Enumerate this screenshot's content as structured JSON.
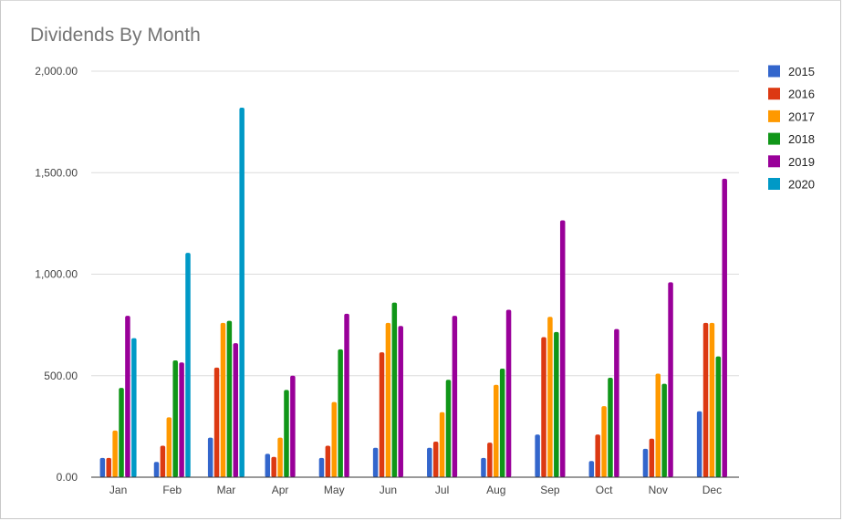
{
  "chart_data": {
    "type": "bar",
    "title": "Dividends By Month",
    "xlabel": "",
    "ylabel": "",
    "ylim": [
      0,
      2000
    ],
    "yticks": [
      0,
      500,
      1000,
      1500,
      2000
    ],
    "ytick_labels": [
      "0.00",
      "500.00",
      "1,000.00",
      "1,500.00",
      "2,000.00"
    ],
    "grid": true,
    "legend_position": "right",
    "categories": [
      "Jan",
      "Feb",
      "Mar",
      "Apr",
      "May",
      "Jun",
      "Jul",
      "Aug",
      "Sep",
      "Oct",
      "Nov",
      "Dec"
    ],
    "series": [
      {
        "name": "2015",
        "color": "#3366cc",
        "values": [
          95,
          75,
          195,
          115,
          95,
          145,
          145,
          95,
          210,
          80,
          140,
          325
        ]
      },
      {
        "name": "2016",
        "color": "#dc3912",
        "values": [
          95,
          155,
          540,
          100,
          155,
          615,
          175,
          170,
          690,
          210,
          190,
          760
        ]
      },
      {
        "name": "2017",
        "color": "#ff9900",
        "values": [
          230,
          295,
          760,
          195,
          370,
          760,
          320,
          455,
          790,
          350,
          510,
          760
        ]
      },
      {
        "name": "2018",
        "color": "#109618",
        "values": [
          440,
          575,
          770,
          430,
          630,
          860,
          480,
          535,
          715,
          490,
          460,
          595
        ]
      },
      {
        "name": "2019",
        "color": "#990099",
        "values": [
          795,
          565,
          660,
          500,
          805,
          745,
          795,
          825,
          1265,
          730,
          960,
          1470
        ]
      },
      {
        "name": "2020",
        "color": "#0099c6",
        "values": [
          685,
          1105,
          1820,
          null,
          null,
          null,
          null,
          null,
          null,
          null,
          null,
          null
        ]
      }
    ]
  }
}
